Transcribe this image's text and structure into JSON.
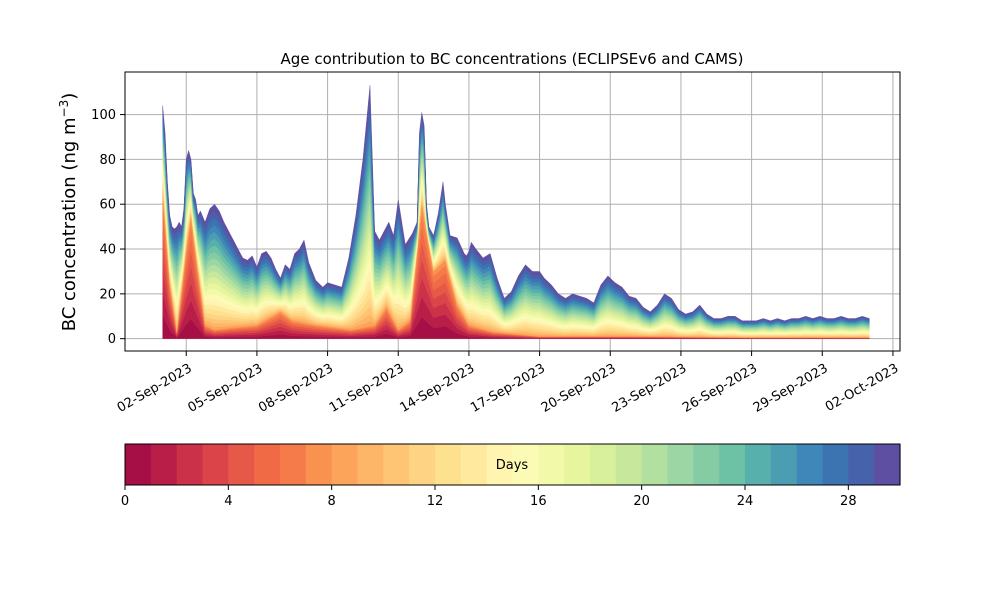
{
  "chart_data": {
    "type": "area",
    "title": "Age contribution to BC concentrations (ECLIPSEv6 and CAMS)",
    "ylabel_main": "BC concentration (ng m",
    "ylabel_sup": "−3",
    "ylabel_close": ")",
    "xlabel": "",
    "xlim_days": [
      -1.6,
      31.3
    ],
    "ylim": [
      -5.5,
      119
    ],
    "yticks": [
      0,
      20,
      40,
      60,
      80,
      100
    ],
    "ytick_labels": [
      "0",
      "20",
      "40",
      "60",
      "80",
      "100"
    ],
    "xticks_days": [
      1,
      4,
      7,
      10,
      13,
      16,
      19,
      22,
      25,
      28,
      31
    ],
    "xtick_labels": [
      "02-Sep-2023",
      "05-Sep-2023",
      "08-Sep-2023",
      "11-Sep-2023",
      "14-Sep-2023",
      "17-Sep-2023",
      "20-Sep-2023",
      "23-Sep-2023",
      "26-Sep-2023",
      "29-Sep-2023",
      "02-Oct-2023"
    ],
    "x_unit": "days since 01-Sep-2023",
    "total": {
      "x": [
        0,
        0.1,
        0.2,
        0.3,
        0.4,
        0.5,
        0.6,
        0.7,
        0.8,
        0.9,
        1.0,
        1.1,
        1.2,
        1.3,
        1.4,
        1.5,
        1.6,
        1.8,
        2.0,
        2.2,
        2.4,
        2.6,
        2.8,
        3.0,
        3.2,
        3.4,
        3.6,
        3.8,
        4.0,
        4.2,
        4.4,
        4.6,
        4.8,
        5.0,
        5.2,
        5.4,
        5.6,
        5.8,
        6.0,
        6.2,
        6.5,
        6.8,
        7.0,
        7.3,
        7.6,
        7.9,
        8.2,
        8.5,
        8.8,
        9.0,
        9.2,
        9.4,
        9.6,
        9.8,
        10.0,
        10.3,
        10.6,
        10.8,
        10.9,
        11.0,
        11.1,
        11.2,
        11.3,
        11.5,
        11.7,
        11.9,
        12.0,
        12.2,
        12.5,
        12.8,
        12.9,
        13.0,
        13.1,
        13.3,
        13.6,
        13.9,
        14.2,
        14.5,
        14.8,
        15.1,
        15.4,
        15.7,
        16.0,
        16.2,
        16.5,
        16.8,
        17.1,
        17.4,
        17.7,
        18.0,
        18.3,
        18.6,
        18.9,
        19.2,
        19.5,
        19.8,
        20.1,
        20.4,
        20.7,
        21.0,
        21.3,
        21.6,
        21.9,
        22.2,
        22.5,
        22.8,
        23.1,
        23.4,
        23.7,
        24.0,
        24.3,
        24.6,
        24.9,
        25.2,
        25.5,
        25.8,
        26.1,
        26.4,
        26.7,
        27.0,
        27.3,
        27.6,
        27.9,
        28.2,
        28.5,
        28.8,
        29.1,
        29.4,
        29.7,
        30.0
      ],
      "y": [
        104,
        92,
        70,
        55,
        50,
        49,
        50,
        52,
        50,
        58,
        80,
        84,
        80,
        65,
        62,
        55,
        57,
        52,
        58,
        60,
        57,
        52,
        48,
        44,
        40,
        36,
        35,
        37,
        32,
        38,
        39,
        36,
        31,
        27,
        33,
        31,
        38,
        40,
        44,
        34,
        26,
        23,
        25,
        24,
        23,
        36,
        55,
        80,
        113,
        48,
        44,
        48,
        52,
        46,
        62,
        42,
        47,
        52,
        92,
        101,
        95,
        60,
        50,
        46,
        56,
        70,
        60,
        46,
        45,
        38,
        37,
        39,
        43,
        40,
        36,
        38,
        27,
        18,
        21,
        28,
        33,
        30,
        30,
        27,
        24,
        20,
        18,
        20,
        19,
        18,
        16,
        24,
        28,
        25,
        23,
        19,
        18,
        14,
        12,
        15,
        20,
        18,
        13,
        11,
        12,
        15,
        11,
        9,
        9,
        10,
        10,
        8,
        8,
        8,
        9,
        8,
        9,
        8,
        9,
        9,
        10,
        9,
        10,
        9,
        9,
        10,
        9,
        9,
        10,
        9
      ]
    },
    "young_component": {
      "x": [
        0,
        0.3,
        0.6,
        1.0,
        1.2,
        1.5,
        1.8,
        2.2,
        3.0,
        4.0,
        5.0,
        5.5,
        6.5,
        8.0,
        9.0,
        9.5,
        10.0,
        10.5,
        11.0,
        11.5,
        12.0,
        12.5,
        13.0,
        14.0,
        15.0,
        16.0,
        17.0,
        18.0,
        20.0,
        25.0,
        30.0
      ],
      "y": [
        66,
        25,
        3,
        40,
        55,
        30,
        6,
        4,
        5,
        6,
        12,
        8,
        6,
        4,
        6,
        14,
        4,
        8,
        60,
        30,
        35,
        15,
        6,
        3,
        2,
        1,
        1,
        1,
        1,
        0.5,
        0.5
      ]
    },
    "colorbar": {
      "label": "Days",
      "range": [
        0,
        30
      ],
      "n_bins": 30,
      "ticks": [
        0,
        4,
        8,
        12,
        16,
        20,
        24,
        28
      ],
      "tick_labels": [
        "0",
        "4",
        "8",
        "12",
        "16",
        "20",
        "24",
        "28"
      ],
      "colors": [
        "#a50f45",
        "#b81e48",
        "#cc314a",
        "#db454a",
        "#e65847",
        "#f06b45",
        "#f67b4a",
        "#f9924f",
        "#fba45a",
        "#fdb567",
        "#fdc574",
        "#fed383",
        "#fee18f",
        "#fee99f",
        "#fff4b0",
        "#fbfbb6",
        "#f2faaa",
        "#e6f59e",
        "#d8ef9c",
        "#c7e89c",
        "#b2e0a1",
        "#9cd6a4",
        "#85cca5",
        "#6dc2a6",
        "#57b0ab",
        "#4b9db1",
        "#3f87b8",
        "#3c74b2",
        "#4662ab",
        "#5e4fa2"
      ]
    }
  }
}
